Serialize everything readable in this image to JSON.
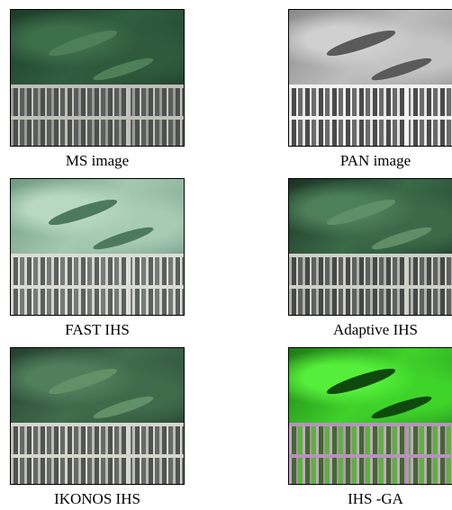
{
  "figure": {
    "panels": [
      {
        "id": "ms",
        "caption": "MS image"
      },
      {
        "id": "pan",
        "caption": "PAN image"
      },
      {
        "id": "fast",
        "caption": "FAST IHS"
      },
      {
        "id": "adaptive",
        "caption": "Adaptive IHS"
      },
      {
        "id": "ikonos",
        "caption": "IKONOS IHS"
      },
      {
        "id": "ga",
        "caption": "IHS -GA"
      }
    ]
  }
}
